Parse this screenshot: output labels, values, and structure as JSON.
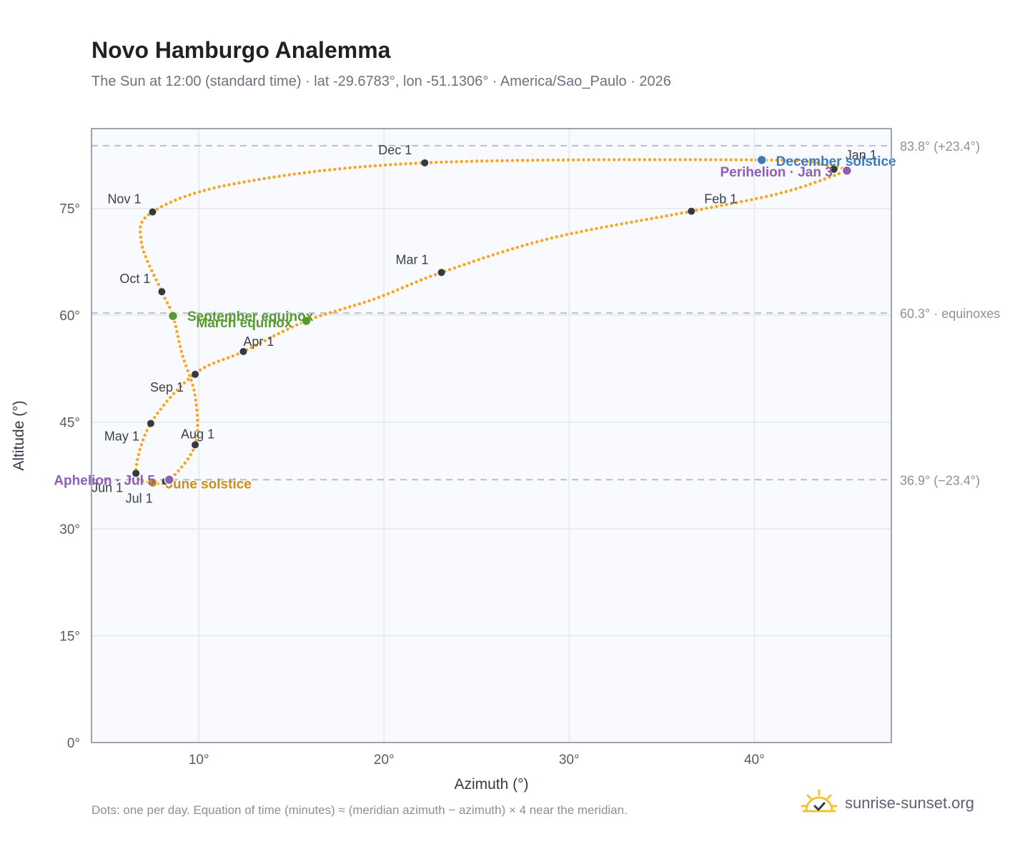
{
  "title": "Novo Hamburgo Analemma",
  "subtitle": "The Sun at 12:00 (standard time) · lat -29.6783°, lon -51.1306° · America/Sao_Paulo · 2026",
  "footnote": "Dots: one per day. Equation of time (minutes) ≈ (meridian azimuth − azimuth) × 4 near the meridian.",
  "brand": {
    "name": "sunrise-sunset.org",
    "icon": "sun-logo-icon"
  },
  "colors": {
    "path": "#f5a623",
    "month_marker": "#333a44",
    "equinox": "#5a9a32",
    "december_solstice": "#3a7bbf",
    "june_solstice": "#c9901a",
    "apsis": "#8e5fb5",
    "reference_line": "#b6c0cc",
    "plot_background": "#f8fafd",
    "grid": "#e3e8ee",
    "frame": "#9aa5b1"
  },
  "chart_data": {
    "type": "scatter",
    "xlabel": "Azimuth (°)",
    "ylabel": "Altitude (°)",
    "xlim": [
      4.2,
      47.4
    ],
    "ylim": [
      0,
      86.2
    ],
    "xticks": [
      10,
      20,
      30,
      40
    ],
    "yticks": [
      0,
      15,
      30,
      45,
      60,
      75
    ],
    "tick_suffix": "°",
    "grid": true,
    "series": [
      {
        "points": [
          [
            44.8,
            80.4
          ],
          [
            45.0,
            80.3
          ],
          [
            41.5,
            77.2
          ],
          [
            36.6,
            74.6
          ],
          [
            29.0,
            70.8
          ],
          [
            23.1,
            66.0
          ],
          [
            19.5,
            62.3
          ],
          [
            15.8,
            59.2
          ],
          [
            12.4,
            54.9
          ],
          [
            9.8,
            51.8
          ],
          [
            7.4,
            44.8
          ],
          [
            6.6,
            37.8
          ],
          [
            7.5,
            36.5
          ],
          [
            8.4,
            36.9
          ],
          [
            9.8,
            41.8
          ],
          [
            9.8,
            48.6
          ],
          [
            9.1,
            54.5
          ],
          [
            8.6,
            59.9
          ],
          [
            8.0,
            63.3
          ],
          [
            6.9,
            70.2
          ],
          [
            7.5,
            74.5
          ],
          [
            12.0,
            78.5
          ],
          [
            22.2,
            81.4
          ],
          [
            40.4,
            81.8
          ],
          [
            44.0,
            81.0
          ],
          [
            45.0,
            80.4
          ]
        ]
      }
    ],
    "month_markers": [
      {
        "label": "Jan 1",
        "azimuth": 44.3,
        "altitude": 80.5
      },
      {
        "label": "Feb 1",
        "azimuth": 36.6,
        "altitude": 74.6
      },
      {
        "label": "Mar 1",
        "azimuth": 23.1,
        "altitude": 66.0
      },
      {
        "label": "Apr 1",
        "azimuth": 12.4,
        "altitude": 54.9
      },
      {
        "label": "May 1",
        "azimuth": 7.4,
        "altitude": 44.8
      },
      {
        "label": "Jun 1",
        "azimuth": 6.6,
        "altitude": 37.8
      },
      {
        "label": "Jul 1",
        "azimuth": 8.2,
        "altitude": 36.7
      },
      {
        "label": "Aug 1",
        "azimuth": 9.8,
        "altitude": 41.8
      },
      {
        "label": "Sep 1",
        "azimuth": 9.8,
        "altitude": 51.7
      },
      {
        "label": "Oct 1",
        "azimuth": 8.0,
        "altitude": 63.3
      },
      {
        "label": "Nov 1",
        "azimuth": 7.5,
        "altitude": 74.5
      },
      {
        "label": "Dec 1",
        "azimuth": 22.2,
        "altitude": 81.4
      }
    ],
    "events": [
      {
        "label": "December solstice",
        "azimuth": 40.4,
        "altitude": 81.8,
        "color_key": "december_solstice"
      },
      {
        "label": "Perihelion · Jan 3",
        "azimuth": 45.0,
        "altitude": 80.3,
        "color_key": "apsis"
      },
      {
        "label": "March equinox",
        "azimuth": 15.8,
        "altitude": 59.2,
        "color_key": "equinox"
      },
      {
        "label": "September equinox",
        "azimuth": 8.6,
        "altitude": 59.9,
        "color_key": "equinox"
      },
      {
        "label": "June solstice",
        "azimuth": 7.5,
        "altitude": 36.5,
        "color_key": "june_solstice"
      },
      {
        "label": "Aphelion · Jul 5",
        "azimuth": 8.4,
        "altitude": 36.9,
        "color_key": "apsis"
      }
    ],
    "reference_lines": [
      {
        "altitude": 83.8,
        "label": "83.8° (+23.4°)"
      },
      {
        "altitude": 60.3,
        "label": "60.3° · equinoxes"
      },
      {
        "altitude": 36.9,
        "label": "36.9° (−23.4°)"
      }
    ]
  }
}
